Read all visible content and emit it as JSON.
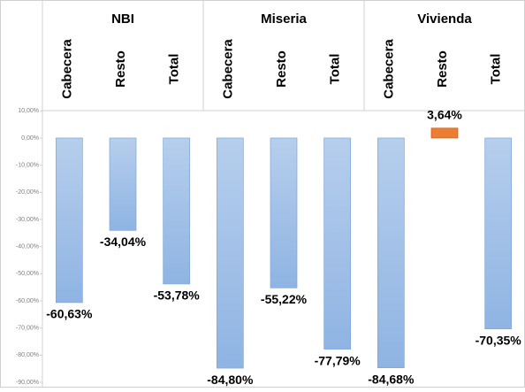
{
  "chart_data": {
    "type": "bar",
    "groups": [
      "NBI",
      "Miseria",
      "Vivienda"
    ],
    "categories": [
      "Cabecera",
      "Resto",
      "Total",
      "Cabecera",
      "Resto",
      "Total",
      "Cabecera",
      "Resto",
      "Total"
    ],
    "values": [
      -60.63,
      -34.04,
      -53.78,
      -84.8,
      -55.22,
      -77.79,
      -84.68,
      3.64,
      -70.35
    ],
    "value_labels": [
      "-60,63%",
      "-34,04%",
      "-53,78%",
      "-84,80%",
      "-55,22%",
      "-77,79%",
      "-84,68%",
      "3,64%",
      "-70,35%"
    ],
    "colors": [
      "#8fb4e3",
      "#8fb4e3",
      "#8fb4e3",
      "#8fb4e3",
      "#8fb4e3",
      "#8fb4e3",
      "#8fb4e3",
      "#ed7d31",
      "#8fb4e3"
    ],
    "ylim": [
      -90,
      10
    ],
    "yticks": [
      {
        "value": 10,
        "label": "10,00%"
      },
      {
        "value": 0,
        "label": "0,00%"
      },
      {
        "value": -10,
        "label": "-10,00%"
      },
      {
        "value": -20,
        "label": "-20,00%"
      },
      {
        "value": -30,
        "label": "-30,00%"
      },
      {
        "value": -40,
        "label": "-40,00%"
      },
      {
        "value": -50,
        "label": "-50,00%"
      },
      {
        "value": -60,
        "label": "-60,00%"
      },
      {
        "value": -70,
        "label": "-70,00%"
      },
      {
        "value": -80,
        "label": "-80,00%"
      },
      {
        "value": -90,
        "label": "-90,00%"
      }
    ]
  }
}
